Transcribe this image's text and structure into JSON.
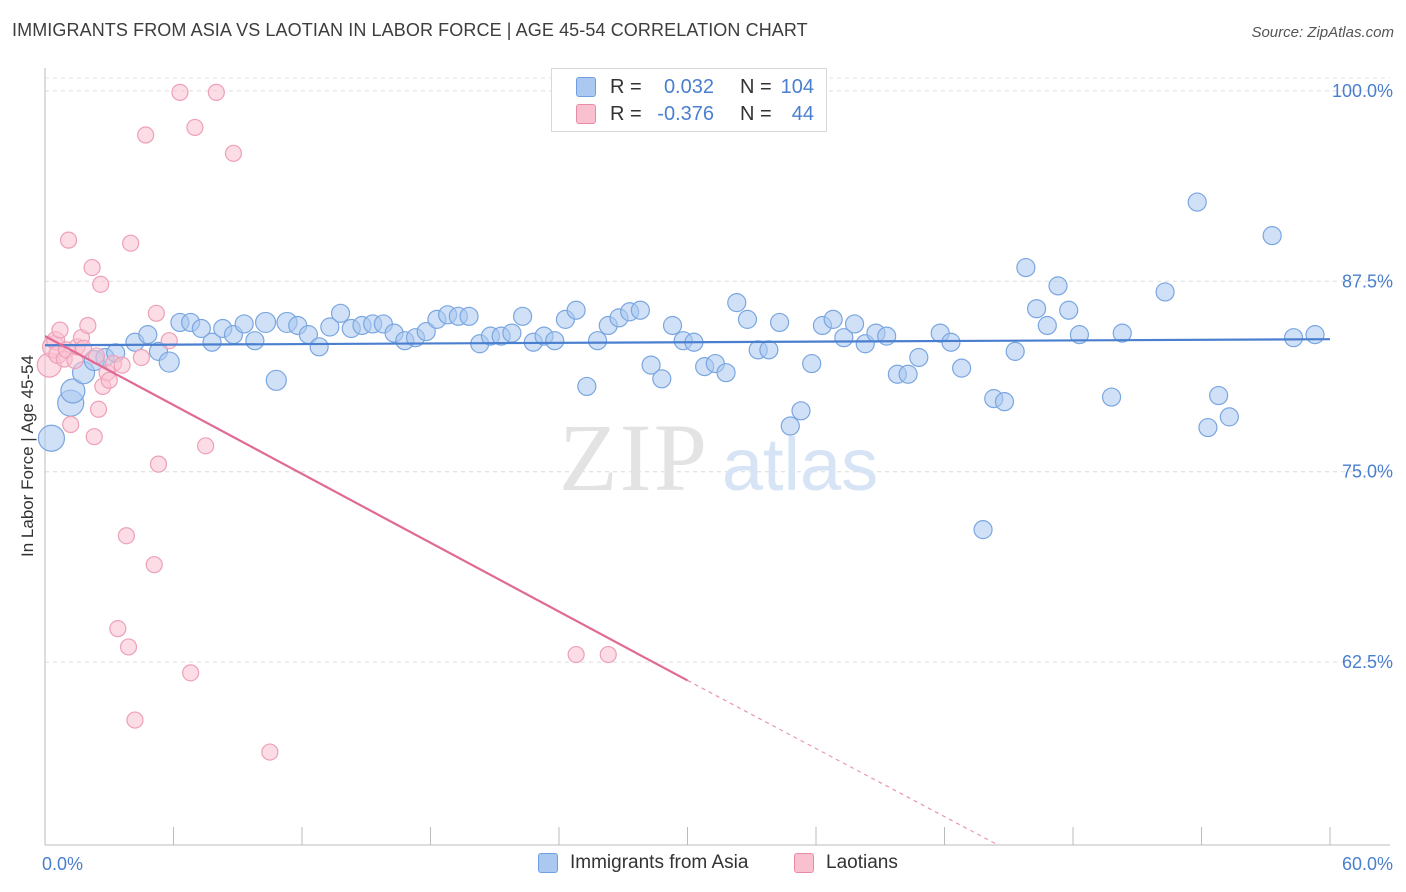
{
  "title": "IMMIGRANTS FROM ASIA VS LAOTIAN IN LABOR FORCE | AGE 45-54 CORRELATION CHART",
  "source": "Source: ZipAtlas.com",
  "watermark": {
    "zip": "ZIP",
    "atlas": "atlas"
  },
  "legend": {
    "r_label": "R =",
    "n_label": "N =",
    "rows": [
      {
        "r_value": "0.032",
        "n_value": "104",
        "color": "#aac8f0",
        "border": "#6f9fe0"
      },
      {
        "r_value": "-0.376",
        "n_value": "44",
        "color": "#f9c0d0",
        "border": "#e88aa8"
      }
    ]
  },
  "bottom_legend": [
    {
      "label": "Immigrants from Asia",
      "color": "#aac8f0",
      "border": "#6f9fe0"
    },
    {
      "label": "Laotians",
      "color": "#f9c0d0",
      "border": "#e88aa8"
    }
  ],
  "chart_data": {
    "type": "scatter",
    "title": "IMMIGRANTS FROM ASIA VS LAOTIAN IN LABOR FORCE | AGE 45-54 CORRELATION CHART",
    "xlabel": "",
    "ylabel": "In Labor Force | Age 45-54",
    "xlim": [
      0,
      60
    ],
    "ylim": [
      50.5,
      101.5
    ],
    "x_tick_labels": [
      {
        "value": 0,
        "label": "0.0%"
      },
      {
        "value": 60,
        "label": "60.0%"
      }
    ],
    "x_minor_ticks": [
      6,
      12,
      18,
      24,
      30,
      36,
      42,
      48,
      54
    ],
    "y_ticks": [
      {
        "value": 100,
        "label": "100.0%"
      },
      {
        "value": 87.5,
        "label": "87.5%"
      },
      {
        "value": 75,
        "label": "75.0%"
      },
      {
        "value": 62.5,
        "label": "62.5%"
      }
    ],
    "grid": true,
    "colors": {
      "asia": "#4a7fcf",
      "laotian": "#e06a95",
      "tick_label": "#4a7fcf"
    },
    "series": [
      {
        "name": "Immigrants from Asia",
        "fill": "#aac8f0",
        "stroke": "#7aa6e0",
        "trend": {
          "x": [
            0,
            60
          ],
          "y": [
            83.3,
            83.7
          ],
          "dashed_from": null
        },
        "points": [
          [
            0.3,
            77.2,
            13
          ],
          [
            1.2,
            79.5,
            13
          ],
          [
            1.3,
            80.3,
            12
          ],
          [
            1.8,
            81.5,
            11
          ],
          [
            2.3,
            82.3,
            10
          ],
          [
            2.8,
            82.5,
            9
          ],
          [
            3.3,
            82.8,
            9
          ],
          [
            4.2,
            83.5,
            9
          ],
          [
            4.8,
            84.0,
            9
          ],
          [
            5.3,
            82.9,
            9
          ],
          [
            5.8,
            82.2,
            10
          ],
          [
            6.3,
            84.8,
            9
          ],
          [
            6.8,
            84.8,
            9
          ],
          [
            7.3,
            84.4,
            9
          ],
          [
            7.8,
            83.5,
            9
          ],
          [
            8.3,
            84.4,
            9
          ],
          [
            8.8,
            84.0,
            9
          ],
          [
            9.3,
            84.7,
            9
          ],
          [
            9.8,
            83.6,
            9
          ],
          [
            10.3,
            84.8,
            10
          ],
          [
            10.8,
            81.0,
            10
          ],
          [
            11.3,
            84.8,
            10
          ],
          [
            11.8,
            84.6,
            9
          ],
          [
            12.3,
            84.0,
            9
          ],
          [
            12.8,
            83.2,
            9
          ],
          [
            13.3,
            84.5,
            9
          ],
          [
            13.8,
            85.4,
            9
          ],
          [
            14.3,
            84.4,
            9
          ],
          [
            14.8,
            84.6,
            9
          ],
          [
            15.3,
            84.7,
            9
          ],
          [
            15.8,
            84.7,
            9
          ],
          [
            16.3,
            84.1,
            9
          ],
          [
            16.8,
            83.6,
            9
          ],
          [
            17.3,
            83.8,
            9
          ],
          [
            17.8,
            84.2,
            9
          ],
          [
            18.3,
            85.0,
            9
          ],
          [
            18.8,
            85.3,
            9
          ],
          [
            19.3,
            85.2,
            9
          ],
          [
            19.8,
            85.2,
            9
          ],
          [
            20.3,
            83.4,
            9
          ],
          [
            20.8,
            83.9,
            9
          ],
          [
            21.3,
            83.9,
            9
          ],
          [
            21.8,
            84.1,
            9
          ],
          [
            22.3,
            85.2,
            9
          ],
          [
            22.8,
            83.5,
            9
          ],
          [
            23.3,
            83.9,
            9
          ],
          [
            23.8,
            83.6,
            9
          ],
          [
            24.3,
            85.0,
            9
          ],
          [
            24.8,
            85.6,
            9
          ],
          [
            25.3,
            80.6,
            9
          ],
          [
            25.8,
            83.6,
            9
          ],
          [
            26.3,
            84.6,
            9
          ],
          [
            26.8,
            85.1,
            9
          ],
          [
            27.3,
            85.5,
            9
          ],
          [
            27.8,
            85.6,
            9
          ],
          [
            28.3,
            82.0,
            9
          ],
          [
            28.8,
            81.1,
            9
          ],
          [
            29.3,
            84.6,
            9
          ],
          [
            29.8,
            83.6,
            9
          ],
          [
            30.3,
            83.5,
            9
          ],
          [
            30.8,
            81.9,
            9
          ],
          [
            31.3,
            82.1,
            9
          ],
          [
            31.8,
            81.5,
            9
          ],
          [
            32.3,
            86.1,
            9
          ],
          [
            32.8,
            85.0,
            9
          ],
          [
            33.3,
            83.0,
            9
          ],
          [
            33.8,
            83.0,
            9
          ],
          [
            34.3,
            84.8,
            9
          ],
          [
            34.8,
            78.0,
            9
          ],
          [
            35.3,
            79.0,
            9
          ],
          [
            35.8,
            82.1,
            9
          ],
          [
            36.3,
            84.6,
            9
          ],
          [
            36.8,
            85.0,
            9
          ],
          [
            37.3,
            83.8,
            9
          ],
          [
            37.8,
            84.7,
            9
          ],
          [
            38.3,
            83.4,
            9
          ],
          [
            38.8,
            84.1,
            9
          ],
          [
            39.3,
            83.9,
            9
          ],
          [
            39.8,
            81.4,
            9
          ],
          [
            40.3,
            81.4,
            9
          ],
          [
            40.8,
            82.5,
            9
          ],
          [
            41.8,
            84.1,
            9
          ],
          [
            42.3,
            83.5,
            9
          ],
          [
            42.8,
            81.8,
            9
          ],
          [
            43.8,
            71.2,
            9
          ],
          [
            44.3,
            79.8,
            9
          ],
          [
            44.8,
            79.6,
            9
          ],
          [
            45.3,
            82.9,
            9
          ],
          [
            45.8,
            88.4,
            9
          ],
          [
            46.3,
            85.7,
            9
          ],
          [
            46.8,
            84.6,
            9
          ],
          [
            47.3,
            87.2,
            9
          ],
          [
            47.8,
            85.6,
            9
          ],
          [
            48.3,
            84.0,
            9
          ],
          [
            49.8,
            79.9,
            9
          ],
          [
            50.3,
            84.1,
            9
          ],
          [
            52.3,
            86.8,
            9
          ],
          [
            53.8,
            92.7,
            9
          ],
          [
            54.3,
            77.9,
            9
          ],
          [
            54.8,
            80.0,
            9
          ],
          [
            55.3,
            78.6,
            9
          ],
          [
            57.3,
            90.5,
            9
          ],
          [
            58.3,
            83.8,
            9
          ],
          [
            59.3,
            84.0,
            9
          ]
        ]
      },
      {
        "name": "Laotians",
        "fill": "#f9c0d0",
        "stroke": "#eda0b8",
        "trend": {
          "x": [
            0,
            30,
            44.5
          ],
          "y": [
            83.9,
            61.3,
            50.5
          ],
          "dashed_from": 30
        },
        "points": [
          [
            0.2,
            82.0,
            12
          ],
          [
            0.4,
            83.2,
            11
          ],
          [
            0.5,
            83.6,
            9
          ],
          [
            0.6,
            82.7,
            9
          ],
          [
            0.7,
            84.3,
            8
          ],
          [
            0.9,
            82.4,
            8
          ],
          [
            1.0,
            83.0,
            8
          ],
          [
            1.1,
            90.2,
            8
          ],
          [
            1.2,
            78.1,
            8
          ],
          [
            1.4,
            82.3,
            8
          ],
          [
            1.5,
            83.2,
            8
          ],
          [
            1.7,
            83.8,
            8
          ],
          [
            1.8,
            83.1,
            8
          ],
          [
            2.0,
            84.6,
            8
          ],
          [
            2.2,
            88.4,
            8
          ],
          [
            2.3,
            77.3,
            8
          ],
          [
            2.5,
            79.1,
            8
          ],
          [
            2.6,
            87.3,
            8
          ],
          [
            2.7,
            80.6,
            8
          ],
          [
            2.9,
            81.5,
            8
          ],
          [
            3.0,
            81.0,
            8
          ],
          [
            3.2,
            82.1,
            8
          ],
          [
            3.6,
            82.0,
            8
          ],
          [
            3.8,
            70.8,
            8
          ],
          [
            3.9,
            63.5,
            8
          ],
          [
            4.0,
            90.0,
            8
          ],
          [
            4.5,
            82.5,
            8
          ],
          [
            4.7,
            97.1,
            8
          ],
          [
            5.1,
            68.9,
            8
          ],
          [
            5.2,
            85.4,
            8
          ],
          [
            5.3,
            75.5,
            8
          ],
          [
            5.8,
            83.6,
            8
          ],
          [
            6.3,
            99.9,
            8
          ],
          [
            6.8,
            61.8,
            8
          ],
          [
            7.0,
            97.6,
            8
          ],
          [
            7.5,
            76.7,
            8
          ],
          [
            8.0,
            99.9,
            8
          ],
          [
            8.8,
            95.9,
            8
          ],
          [
            10.5,
            56.6,
            8
          ],
          [
            24.8,
            63.0,
            8
          ],
          [
            26.3,
            63.0,
            8
          ],
          [
            3.4,
            64.7,
            8
          ],
          [
            4.2,
            58.7,
            8
          ],
          [
            2.4,
            82.6,
            8
          ]
        ]
      }
    ]
  }
}
